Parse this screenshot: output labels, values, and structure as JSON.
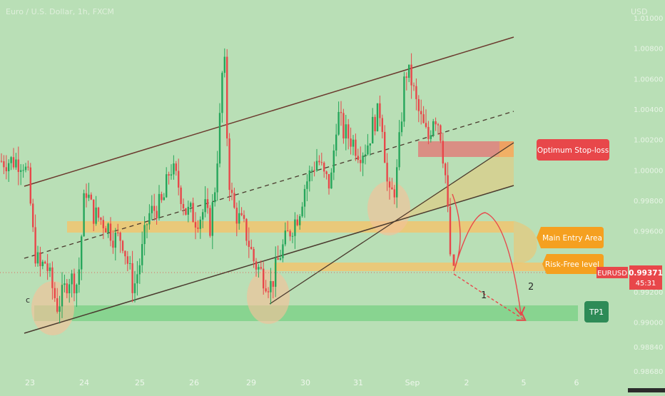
{
  "header": {
    "symbol_line": "Euro / U.S. Dollar, 1h, FXCM",
    "currency": "USD"
  },
  "price_axis": {
    "ticks": [
      "1.01000",
      "1.00800",
      "1.00600",
      "1.00400",
      "1.00200",
      "1.00000",
      "0.99800",
      "0.99600",
      "0.99200",
      "0.99000",
      "0.98840",
      "0.98680"
    ]
  },
  "time_axis": {
    "ticks": [
      "23",
      "24",
      "25",
      "26",
      "29",
      "30",
      "31",
      "Sep",
      "2",
      "5",
      "6"
    ]
  },
  "current_price": {
    "symbol": "EURUSD",
    "price": "0.99371",
    "countdown": "45:31"
  },
  "annotations": {
    "stop_loss": "Optimum Stop-loss",
    "main_entry": "Main Entry Area",
    "risk_free": "Risk-Free level",
    "tp1": "TP1",
    "wave_c": "c",
    "wave_1": "1",
    "wave_2": "2"
  },
  "colors": {
    "background": "#b9dfb6",
    "bull_candle": "#26a65b",
    "bear_candle": "#e8474a",
    "trend_line": "#6b3a2e",
    "stop_zone": "#e57373",
    "entry_zone": "#f5c36b",
    "tp_zone": "#7fd28a",
    "tp_label": "#2e8b57",
    "price_label": "#e8474a"
  },
  "chart_data": {
    "type": "candlestick",
    "instrument": "EURUSD",
    "timeframe": "1h",
    "ylim": [
      0.9868,
      1.0108
    ],
    "x_categories": [
      "23",
      "24",
      "25",
      "26",
      "29",
      "30",
      "31",
      "Sep",
      "2",
      "5",
      "6"
    ],
    "path_points": [
      [
        "23",
        1.0006
      ],
      [
        "23",
        0.9993
      ],
      [
        "23",
        0.9948
      ],
      [
        "23",
        0.9935
      ],
      [
        "23",
        0.994
      ],
      [
        "23",
        0.9925
      ],
      [
        "23",
        0.9911
      ],
      [
        "23",
        0.9918
      ],
      [
        "23",
        0.993
      ],
      [
        "24",
        0.9925
      ],
      [
        "24",
        0.999
      ],
      [
        "24",
        0.9972
      ],
      [
        "24",
        0.9968
      ],
      [
        "24",
        0.9964
      ],
      [
        "24",
        0.9955
      ],
      [
        "24",
        0.9956
      ],
      [
        "25",
        0.9922
      ],
      [
        "25",
        0.9942
      ],
      [
        "25",
        0.997
      ],
      [
        "25",
        0.9975
      ],
      [
        "25",
        0.9978
      ],
      [
        "25",
        1.0003
      ],
      [
        "25",
        0.9992
      ],
      [
        "26",
        0.9972
      ],
      [
        "26",
        0.9972
      ],
      [
        "26",
        0.9968
      ],
      [
        "26",
        0.997
      ],
      [
        "26",
        0.9975
      ],
      [
        "26",
        0.9962
      ],
      [
        "26",
        0.9985
      ],
      [
        "26",
        1.0025
      ],
      [
        "26",
        1.0082
      ],
      [
        "26",
        0.9998
      ],
      [
        "26",
        0.9975
      ],
      [
        "29",
        0.996
      ],
      [
        "29",
        0.994
      ],
      [
        "29",
        0.9931
      ],
      [
        "29",
        0.9924
      ],
      [
        "29",
        0.9944
      ],
      [
        "29",
        0.9958
      ],
      [
        "30",
        0.9972
      ],
      [
        "30",
        0.999
      ],
      [
        "30",
        1.0
      ],
      [
        "30",
        1.0008
      ],
      [
        "30",
        0.9995
      ],
      [
        "30",
        0.999
      ],
      [
        "30",
        1.0038
      ],
      [
        "30",
        1.0025
      ],
      [
        "31",
        1.002
      ],
      [
        "31",
        1.0012
      ],
      [
        "31",
        1.0015
      ],
      [
        "31",
        1.0032
      ],
      [
        "31",
        1.004
      ],
      [
        "31",
        0.998
      ],
      [
        "31",
        0.999
      ],
      [
        "Sep",
        1.0066
      ],
      [
        "Sep",
        1.006
      ],
      [
        "Sep",
        1.0042
      ],
      [
        "Sep",
        1.003
      ],
      [
        "Sep",
        1.002
      ],
      [
        "Sep",
        1.0038
      ],
      [
        "Sep",
        1.003
      ],
      [
        "Sep",
        0.9998
      ],
      [
        "Sep",
        0.9937
      ]
    ],
    "current_price": 0.99371,
    "zones": {
      "optimum_stop_loss": [
        1.002,
        1.0025
      ],
      "main_entry_area": [
        0.9965,
        0.9972
      ],
      "risk_free_level": [
        0.9936,
        0.9942
      ],
      "tp1": [
        0.9903,
        0.9912
      ]
    },
    "projection": [
      "downward",
      "upward",
      "downward"
    ],
    "grid": false
  }
}
